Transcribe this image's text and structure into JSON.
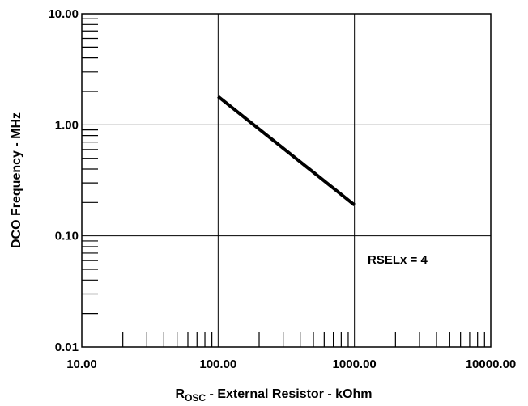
{
  "chart_data": {
    "type": "line",
    "x_scale": "log",
    "y_scale": "log",
    "xlim": [
      10,
      10000
    ],
    "ylim": [
      0.01,
      10
    ],
    "x_ticks": [
      10,
      100,
      1000,
      10000
    ],
    "y_ticks": [
      0.01,
      0.1,
      1,
      10
    ],
    "x_tick_labels": [
      "10.00",
      "100.00",
      "1000.00",
      "10000.00"
    ],
    "y_tick_labels": [
      "0.01",
      "0.10",
      "1.00",
      "10.00"
    ],
    "xlabel_main": "R",
    "xlabel_sub": "OSC",
    "xlabel_rest": " - External Resistor - kOhm",
    "ylabel": "DCO Frequency - MHz",
    "grid": true,
    "annotation": "RSELx = 4",
    "series": [
      {
        "x": [
          100,
          1000
        ],
        "y": [
          1.8,
          0.19
        ]
      }
    ]
  }
}
